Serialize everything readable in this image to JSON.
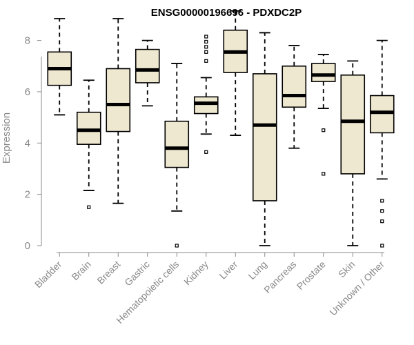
{
  "chart_data": {
    "type": "boxplot",
    "title": "ENSG00000196696 - PDXDC2P",
    "xlabel": "",
    "ylabel": "Expression",
    "ylim": [
      0,
      9.2
    ],
    "yticks": [
      0,
      2,
      4,
      6,
      8
    ],
    "box_color": "#efe8d0",
    "axis_color": "#888888",
    "categories": [
      "Bladder",
      "Brain",
      "Breast",
      "Gastric",
      "Hematopoietic cells",
      "Kidney",
      "Liver",
      "Lung",
      "Pancreas",
      "Prostate",
      "Skin",
      "Unknown / Other"
    ],
    "boxes": [
      {
        "min": 5.1,
        "q1": 6.25,
        "median": 6.9,
        "q3": 7.55,
        "max": 8.85,
        "outliers": []
      },
      {
        "min": 2.15,
        "q1": 3.95,
        "median": 4.5,
        "q3": 5.2,
        "max": 6.45,
        "outliers": [
          1.5
        ]
      },
      {
        "min": 1.65,
        "q1": 4.45,
        "median": 5.5,
        "q3": 6.9,
        "max": 8.85,
        "outliers": []
      },
      {
        "min": 5.45,
        "q1": 6.35,
        "median": 6.85,
        "q3": 7.65,
        "max": 8.0,
        "outliers": []
      },
      {
        "min": 1.35,
        "q1": 3.05,
        "median": 3.8,
        "q3": 4.85,
        "max": 7.1,
        "outliers": [
          0.0
        ]
      },
      {
        "min": 4.35,
        "q1": 5.15,
        "median": 5.55,
        "q3": 5.8,
        "max": 6.55,
        "outliers": [
          3.65,
          7.2,
          7.55,
          7.75,
          7.95,
          8.15
        ]
      },
      {
        "min": 4.3,
        "q1": 6.75,
        "median": 7.55,
        "q3": 8.4,
        "max": 9.15,
        "outliers": []
      },
      {
        "min": 0.0,
        "q1": 1.75,
        "median": 4.7,
        "q3": 6.7,
        "max": 8.3,
        "outliers": []
      },
      {
        "min": 3.8,
        "q1": 5.4,
        "median": 5.85,
        "q3": 7.0,
        "max": 7.8,
        "outliers": []
      },
      {
        "min": 5.35,
        "q1": 6.4,
        "median": 6.65,
        "q3": 7.1,
        "max": 7.45,
        "outliers": [
          2.8,
          4.5
        ]
      },
      {
        "min": 0.0,
        "q1": 2.8,
        "median": 4.85,
        "q3": 6.65,
        "max": 7.2,
        "outliers": []
      },
      {
        "min": 2.6,
        "q1": 4.4,
        "median": 5.2,
        "q3": 5.85,
        "max": 8.0,
        "outliers": [
          0.0,
          0.95,
          1.35,
          1.75
        ]
      }
    ]
  }
}
